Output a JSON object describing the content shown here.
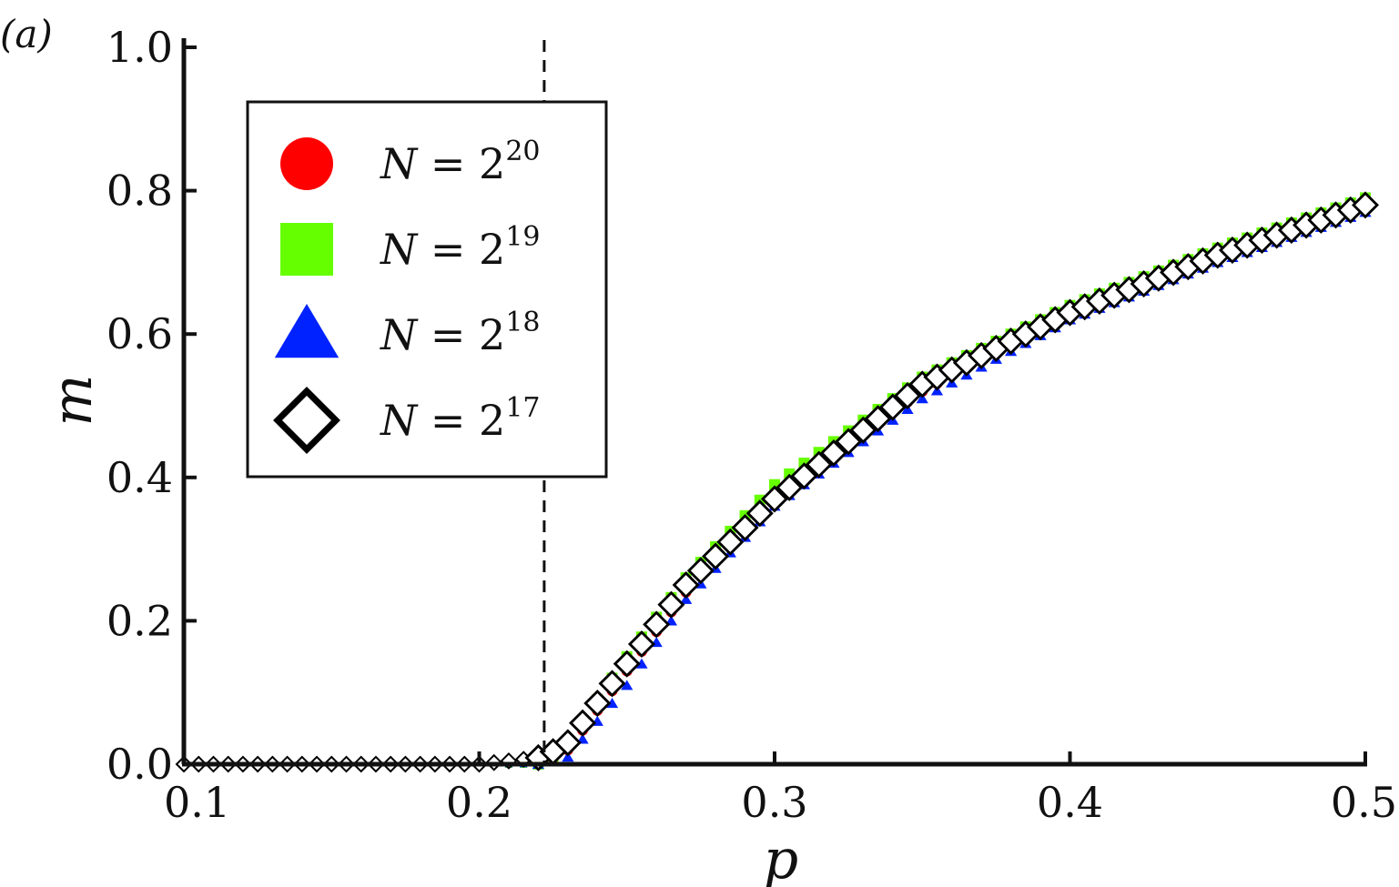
{
  "panel_label": "(a)",
  "chart_data": {
    "type": "scatter",
    "xlabel": "p",
    "ylabel": "m",
    "xlim": [
      0.1,
      0.5
    ],
    "ylim": [
      0.0,
      1.0
    ],
    "x_ticks": [
      "0.1",
      "0.2",
      "0.3",
      "0.4",
      "0.5"
    ],
    "y_ticks": [
      "0.0",
      "0.2",
      "0.4",
      "0.6",
      "0.8",
      "1.0"
    ],
    "critical_line_x": 0.222,
    "grid": false,
    "legend_position": "top-left",
    "series": [
      {
        "name": "N = 2^20",
        "legend_base": "N = 2",
        "legend_exp": "20",
        "marker": "circle",
        "color": "#ff0000",
        "x": [
          0.1,
          0.15,
          0.2,
          0.222,
          0.23,
          0.25,
          0.27,
          0.3,
          0.35,
          0.4,
          0.45,
          0.5
        ],
        "y": [
          0.0,
          0.0,
          0.0,
          0.0,
          0.02,
          0.13,
          0.24,
          0.37,
          0.52,
          0.63,
          0.71,
          0.78
        ]
      },
      {
        "name": "N = 2^19",
        "legend_base": "N = 2",
        "legend_exp": "19",
        "marker": "square",
        "color": "#66ff00",
        "x": [
          0.1,
          0.15,
          0.2,
          0.222,
          0.23,
          0.25,
          0.27,
          0.3,
          0.35,
          0.4,
          0.45,
          0.5
        ],
        "y": [
          0.0,
          0.0,
          0.0,
          0.0,
          0.03,
          0.15,
          0.26,
          0.39,
          0.54,
          0.64,
          0.72,
          0.79
        ]
      },
      {
        "name": "N = 2^18",
        "legend_base": "N = 2",
        "legend_exp": "18",
        "marker": "triangle",
        "color": "#0022ff",
        "x": [
          0.1,
          0.15,
          0.2,
          0.222,
          0.23,
          0.25,
          0.27,
          0.3,
          0.35,
          0.4,
          0.45,
          0.5
        ],
        "y": [
          0.0,
          0.0,
          0.0,
          0.0,
          0.01,
          0.11,
          0.23,
          0.36,
          0.51,
          0.62,
          0.7,
          0.77
        ]
      },
      {
        "name": "N = 2^17",
        "legend_base": "N = 2",
        "legend_exp": "17",
        "marker": "diamond",
        "color": "#000000",
        "x": [
          0.1,
          0.15,
          0.2,
          0.222,
          0.23,
          0.25,
          0.27,
          0.3,
          0.35,
          0.4,
          0.45,
          0.5
        ],
        "y": [
          0.0,
          0.0,
          0.0,
          0.01,
          0.03,
          0.14,
          0.25,
          0.37,
          0.53,
          0.63,
          0.71,
          0.78
        ]
      }
    ]
  }
}
